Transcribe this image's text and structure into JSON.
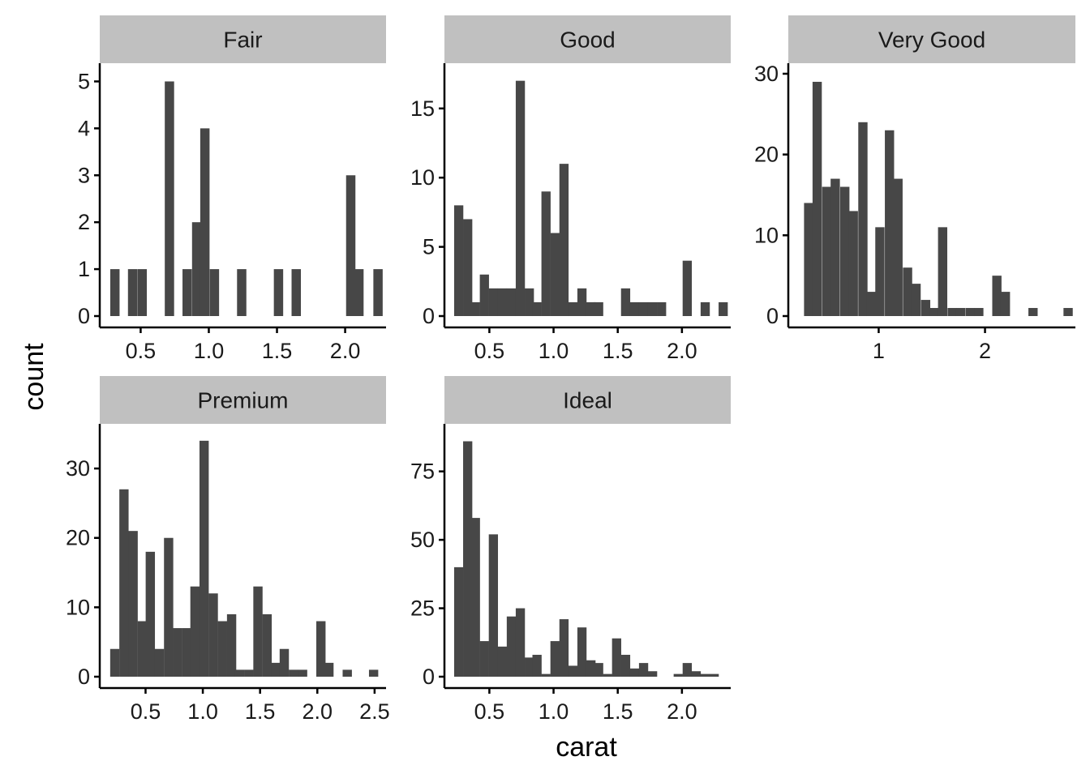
{
  "chart_data": {
    "type": "bar",
    "xlabel": "carat",
    "ylabel": "count",
    "bar_color": "#474747",
    "strip_color": "#c0c0c0",
    "panels": [
      {
        "name": "Fair",
        "xlim": [
          0.2,
          2.3
        ],
        "ylim": [
          0,
          5.25
        ],
        "x_ticks": [
          0.5,
          1.0,
          1.5,
          2.0
        ],
        "x_tick_labels": [
          "0.5",
          "1.0",
          "1.5",
          "2.0"
        ],
        "y_ticks": [
          0,
          1,
          2,
          3,
          4,
          5
        ],
        "y_tick_labels": [
          "0",
          "1",
          "2",
          "3",
          "4",
          "5"
        ],
        "bin_width": 0.066,
        "bins": [
          {
            "x": 0.31,
            "count": 1
          },
          {
            "x": 0.44,
            "count": 1
          },
          {
            "x": 0.51,
            "count": 1
          },
          {
            "x": 0.71,
            "count": 5
          },
          {
            "x": 0.84,
            "count": 1
          },
          {
            "x": 0.91,
            "count": 2
          },
          {
            "x": 0.97,
            "count": 4
          },
          {
            "x": 1.04,
            "count": 1
          },
          {
            "x": 1.24,
            "count": 1
          },
          {
            "x": 1.51,
            "count": 1
          },
          {
            "x": 1.64,
            "count": 1
          },
          {
            "x": 2.04,
            "count": 3
          },
          {
            "x": 2.1,
            "count": 1
          },
          {
            "x": 2.24,
            "count": 1
          }
        ]
      },
      {
        "name": "Good",
        "xlim": [
          0.15,
          2.38
        ],
        "ylim": [
          0,
          17.8
        ],
        "x_ticks": [
          0.5,
          1.0,
          1.5,
          2.0
        ],
        "x_tick_labels": [
          "0.5",
          "1.0",
          "1.5",
          "2.0"
        ],
        "y_ticks": [
          0,
          5,
          10,
          15
        ],
        "y_tick_labels": [
          "0",
          "5",
          "10",
          "15"
        ],
        "bin_width": 0.069,
        "bins": [
          {
            "x": 0.26,
            "count": 8
          },
          {
            "x": 0.33,
            "count": 7
          },
          {
            "x": 0.39,
            "count": 1
          },
          {
            "x": 0.46,
            "count": 3
          },
          {
            "x": 0.53,
            "count": 2
          },
          {
            "x": 0.6,
            "count": 2
          },
          {
            "x": 0.67,
            "count": 2
          },
          {
            "x": 0.74,
            "count": 17
          },
          {
            "x": 0.81,
            "count": 2
          },
          {
            "x": 0.87,
            "count": 1
          },
          {
            "x": 0.94,
            "count": 9
          },
          {
            "x": 1.01,
            "count": 6
          },
          {
            "x": 1.08,
            "count": 11
          },
          {
            "x": 1.15,
            "count": 1
          },
          {
            "x": 1.22,
            "count": 2
          },
          {
            "x": 1.29,
            "count": 1
          },
          {
            "x": 1.35,
            "count": 1
          },
          {
            "x": 1.56,
            "count": 2
          },
          {
            "x": 1.63,
            "count": 1
          },
          {
            "x": 1.7,
            "count": 1
          },
          {
            "x": 1.77,
            "count": 1
          },
          {
            "x": 1.84,
            "count": 1
          },
          {
            "x": 2.04,
            "count": 4
          },
          {
            "x": 2.18,
            "count": 1
          },
          {
            "x": 2.32,
            "count": 1
          }
        ]
      },
      {
        "name": "Very Good",
        "xlim": [
          0.15,
          2.85
        ],
        "ylim": [
          0,
          30.5
        ],
        "x_ticks": [
          1,
          2
        ],
        "x_tick_labels": [
          "1",
          "2"
        ],
        "y_ticks": [
          0,
          10,
          20,
          30
        ],
        "y_tick_labels": [
          "0",
          "10",
          "20",
          "30"
        ],
        "bin_width": 0.084,
        "bins": [
          {
            "x": 0.34,
            "count": 14
          },
          {
            "x": 0.42,
            "count": 29
          },
          {
            "x": 0.51,
            "count": 16
          },
          {
            "x": 0.59,
            "count": 17
          },
          {
            "x": 0.68,
            "count": 16
          },
          {
            "x": 0.76,
            "count": 13
          },
          {
            "x": 0.85,
            "count": 24
          },
          {
            "x": 0.93,
            "count": 3
          },
          {
            "x": 1.01,
            "count": 11
          },
          {
            "x": 1.1,
            "count": 23
          },
          {
            "x": 1.18,
            "count": 17
          },
          {
            "x": 1.27,
            "count": 6
          },
          {
            "x": 1.35,
            "count": 4
          },
          {
            "x": 1.44,
            "count": 2
          },
          {
            "x": 1.52,
            "count": 1
          },
          {
            "x": 1.6,
            "count": 11
          },
          {
            "x": 1.69,
            "count": 1
          },
          {
            "x": 1.77,
            "count": 1
          },
          {
            "x": 1.86,
            "count": 1
          },
          {
            "x": 1.94,
            "count": 1
          },
          {
            "x": 2.11,
            "count": 5
          },
          {
            "x": 2.19,
            "count": 3
          },
          {
            "x": 2.45,
            "count": 1
          },
          {
            "x": 2.78,
            "count": 1
          }
        ]
      },
      {
        "name": "Premium",
        "xlim": [
          0.1,
          2.6
        ],
        "ylim": [
          0,
          35.5
        ],
        "x_ticks": [
          0.5,
          1.0,
          1.5,
          2.0,
          2.5
        ],
        "x_tick_labels": [
          "0.5",
          "1.0",
          "1.5",
          "2.0",
          "2.5"
        ],
        "y_ticks": [
          0,
          10,
          20,
          30
        ],
        "y_tick_labels": [
          "0",
          "10",
          "20",
          "30"
        ],
        "bin_width": 0.078,
        "bins": [
          {
            "x": 0.23,
            "count": 4
          },
          {
            "x": 0.31,
            "count": 27
          },
          {
            "x": 0.39,
            "count": 21
          },
          {
            "x": 0.47,
            "count": 8
          },
          {
            "x": 0.54,
            "count": 18
          },
          {
            "x": 0.62,
            "count": 4
          },
          {
            "x": 0.7,
            "count": 20
          },
          {
            "x": 0.78,
            "count": 7
          },
          {
            "x": 0.86,
            "count": 7
          },
          {
            "x": 0.93,
            "count": 13
          },
          {
            "x": 1.01,
            "count": 34
          },
          {
            "x": 1.09,
            "count": 12
          },
          {
            "x": 1.17,
            "count": 8
          },
          {
            "x": 1.25,
            "count": 9
          },
          {
            "x": 1.32,
            "count": 1
          },
          {
            "x": 1.4,
            "count": 1
          },
          {
            "x": 1.48,
            "count": 13
          },
          {
            "x": 1.56,
            "count": 9
          },
          {
            "x": 1.64,
            "count": 2
          },
          {
            "x": 1.71,
            "count": 4
          },
          {
            "x": 1.79,
            "count": 1
          },
          {
            "x": 1.87,
            "count": 1
          },
          {
            "x": 2.03,
            "count": 8
          },
          {
            "x": 2.1,
            "count": 2
          },
          {
            "x": 2.26,
            "count": 1
          },
          {
            "x": 2.49,
            "count": 1
          }
        ]
      },
      {
        "name": "Ideal",
        "xlim": [
          0.15,
          2.38
        ],
        "ylim": [
          0,
          90
        ],
        "x_ticks": [
          0.5,
          1.0,
          1.5,
          2.0
        ],
        "x_tick_labels": [
          "0.5",
          "1.0",
          "1.5",
          "2.0"
        ],
        "y_ticks": [
          0,
          25,
          50,
          75
        ],
        "y_tick_labels": [
          "0",
          "25",
          "50",
          "75"
        ],
        "bin_width": 0.069,
        "bins": [
          {
            "x": 0.26,
            "count": 40
          },
          {
            "x": 0.33,
            "count": 86
          },
          {
            "x": 0.39,
            "count": 58
          },
          {
            "x": 0.46,
            "count": 13
          },
          {
            "x": 0.53,
            "count": 52
          },
          {
            "x": 0.6,
            "count": 11
          },
          {
            "x": 0.67,
            "count": 22
          },
          {
            "x": 0.74,
            "count": 25
          },
          {
            "x": 0.81,
            "count": 7
          },
          {
            "x": 0.87,
            "count": 8
          },
          {
            "x": 0.94,
            "count": 1
          },
          {
            "x": 1.01,
            "count": 13
          },
          {
            "x": 1.08,
            "count": 21
          },
          {
            "x": 1.15,
            "count": 4
          },
          {
            "x": 1.22,
            "count": 18
          },
          {
            "x": 1.29,
            "count": 6
          },
          {
            "x": 1.35,
            "count": 5
          },
          {
            "x": 1.42,
            "count": 1
          },
          {
            "x": 1.49,
            "count": 14
          },
          {
            "x": 1.56,
            "count": 8
          },
          {
            "x": 1.63,
            "count": 3
          },
          {
            "x": 1.7,
            "count": 5
          },
          {
            "x": 1.77,
            "count": 2
          },
          {
            "x": 1.97,
            "count": 1
          },
          {
            "x": 2.04,
            "count": 5
          },
          {
            "x": 2.11,
            "count": 2
          },
          {
            "x": 2.18,
            "count": 1
          },
          {
            "x": 2.25,
            "count": 1
          }
        ]
      }
    ]
  }
}
